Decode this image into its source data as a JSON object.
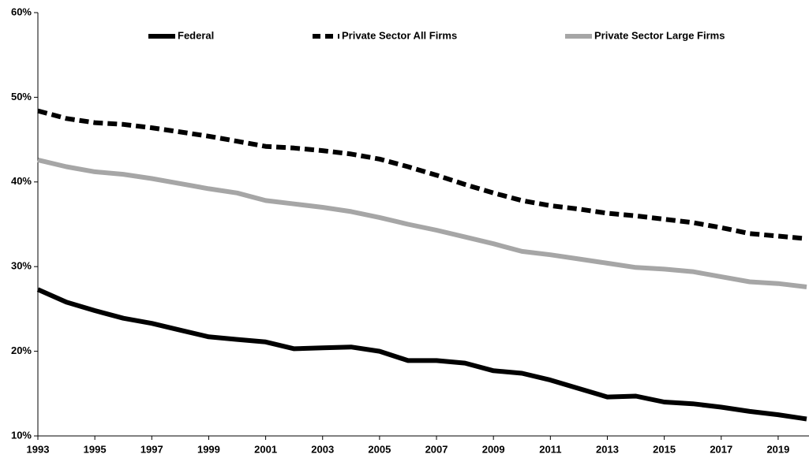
{
  "chart_data": {
    "type": "line",
    "x": [
      1993,
      1994,
      1995,
      1996,
      1997,
      1998,
      1999,
      2000,
      2001,
      2002,
      2003,
      2004,
      2005,
      2006,
      2007,
      2008,
      2009,
      2010,
      2011,
      2012,
      2013,
      2014,
      2015,
      2016,
      2017,
      2018,
      2019,
      2020
    ],
    "series": [
      {
        "name": "Federal",
        "color": "#000000",
        "dash": false,
        "values": [
          27.3,
          25.8,
          24.8,
          23.9,
          23.3,
          22.5,
          21.7,
          21.4,
          21.1,
          20.3,
          20.4,
          20.5,
          20.0,
          18.9,
          18.9,
          18.6,
          17.7,
          17.4,
          16.6,
          15.6,
          14.6,
          14.7,
          14.0,
          13.8,
          13.4,
          12.9,
          12.5,
          12.0
        ]
      },
      {
        "name": "Private Sector All Firms",
        "color": "#000000",
        "dash": true,
        "values": [
          48.4,
          47.5,
          47.0,
          46.8,
          46.4,
          45.9,
          45.4,
          44.8,
          44.2,
          44.0,
          43.7,
          43.3,
          42.7,
          41.8,
          40.8,
          39.7,
          38.7,
          37.8,
          37.2,
          36.8,
          36.3,
          36.0,
          35.6,
          35.2,
          34.6,
          33.9,
          33.6,
          33.3
        ]
      },
      {
        "name": "Private Sector Large Firms",
        "color": "#a6a6a6",
        "dash": false,
        "values": [
          42.6,
          41.8,
          41.2,
          40.9,
          40.4,
          39.8,
          39.2,
          38.7,
          37.8,
          37.4,
          37.0,
          36.5,
          35.8,
          35.0,
          34.3,
          33.5,
          32.7,
          31.8,
          31.4,
          30.9,
          30.4,
          29.9,
          29.7,
          29.4,
          28.8,
          28.2,
          28.0,
          27.6
        ]
      }
    ],
    "xlim": [
      1993,
      2020
    ],
    "xticks": [
      1993,
      1995,
      1997,
      1999,
      2001,
      2003,
      2005,
      2007,
      2009,
      2011,
      2013,
      2015,
      2017,
      2019
    ],
    "ylim": [
      10,
      60
    ],
    "yticks": [
      {
        "value": 10,
        "label": "10%"
      },
      {
        "value": 20,
        "label": "20%"
      },
      {
        "value": 30,
        "label": "30%"
      },
      {
        "value": 40,
        "label": "40%"
      },
      {
        "value": 50,
        "label": "50%"
      },
      {
        "value": 60,
        "label": "60%"
      }
    ],
    "grid": false,
    "legend": "top"
  }
}
